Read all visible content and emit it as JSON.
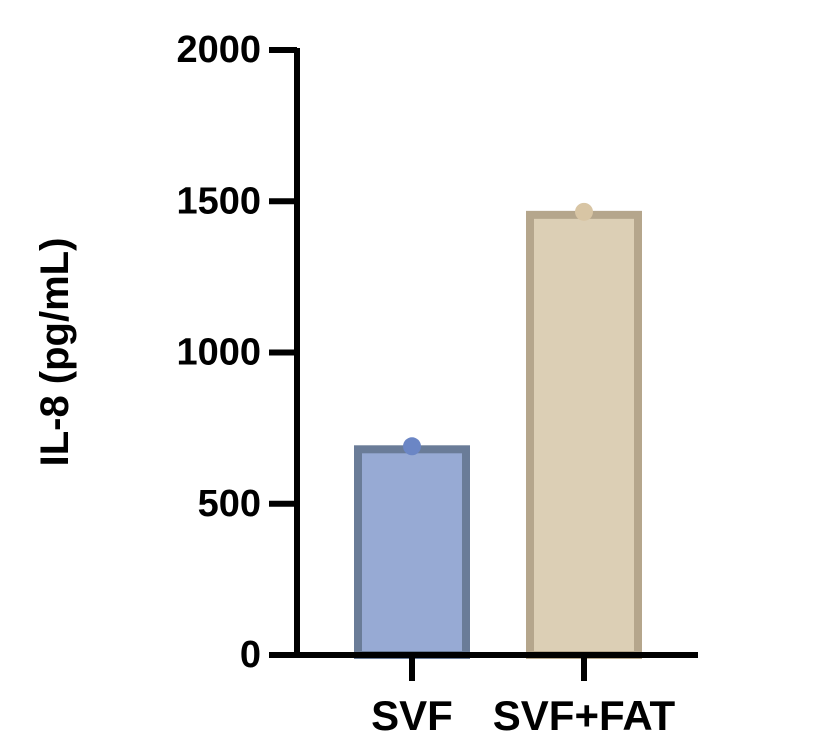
{
  "chart_data": {
    "type": "bar",
    "title": "",
    "xlabel": "",
    "ylabel": "IL-8 (pg/mL)",
    "categories": [
      "SVF",
      "SVF+FAT"
    ],
    "values": [
      680,
      1455
    ],
    "points": [
      690,
      1465
    ],
    "ylim": [
      0,
      2000
    ],
    "yticks": [
      0,
      500,
      1000,
      1500,
      2000
    ],
    "ytick_labels": [
      "0",
      "500",
      "1000",
      "1500",
      "2000"
    ],
    "grid": false,
    "legend": "none",
    "colors": {
      "fill": [
        "#97aad4",
        "#dccfb5"
      ],
      "border": [
        "#6a7c98",
        "#b5a68c"
      ],
      "point": [
        "#6b86c5",
        "#d8c5a4"
      ],
      "axis": "#000000"
    }
  }
}
